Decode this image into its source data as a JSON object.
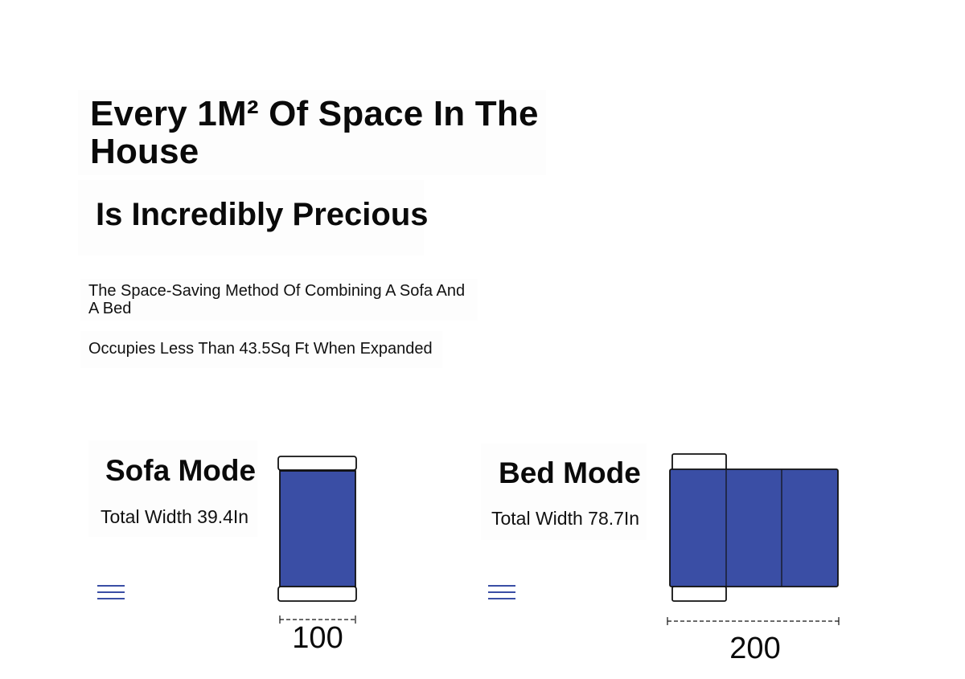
{
  "headline": {
    "line1": "Every 1M² Of Space In The House",
    "line2": "Is Incredibly Precious"
  },
  "description": {
    "line1": "The Space-Saving Method Of Combining A Sofa And A Bed",
    "line2": "Occupies Less Than 43.5Sq Ft When Expanded"
  },
  "modes": [
    {
      "title": "Sofa Mode",
      "width_label": "Total Width 39.4In",
      "dimension": "100",
      "icon": "menu-lines-icon",
      "segments": 1
    },
    {
      "title": "Bed Mode",
      "width_label": "Total Width 78.7In",
      "dimension": "200",
      "icon": "menu-lines-icon",
      "segments": 3
    }
  ],
  "colors": {
    "cushion": "#3a4ea5",
    "icon": "#3a4ea5",
    "outline": "#111111"
  }
}
